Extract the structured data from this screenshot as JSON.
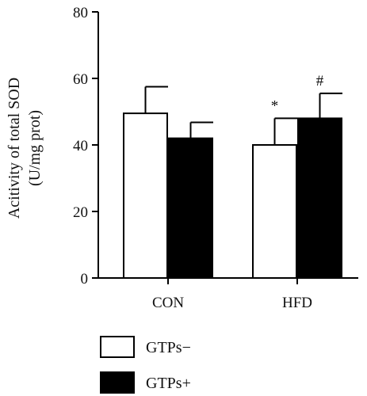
{
  "chart_data": {
    "type": "bar",
    "categories": [
      "CON",
      "HFD"
    ],
    "series": [
      {
        "name": "GTPs−",
        "values": [
          49.5,
          40
        ],
        "errors": [
          8,
          8
        ],
        "color": "#ffffff"
      },
      {
        "name": "GTPs+",
        "values": [
          42,
          48
        ],
        "errors": [
          4.8,
          7.5
        ],
        "color": "#000000"
      }
    ],
    "ylabel_line1": "Acitivity of total SOD",
    "ylabel_line2": "(U/mg prot)",
    "yticks": [
      "0",
      "20",
      "40",
      "60",
      "80"
    ],
    "ylim": [
      0,
      80
    ],
    "annotations": [
      {
        "category": "HFD",
        "series": "GTPs−",
        "text": "*"
      },
      {
        "category": "HFD",
        "series": "GTPs+",
        "text": "#"
      }
    ],
    "legend_position": "bottom-left",
    "grid": false
  }
}
